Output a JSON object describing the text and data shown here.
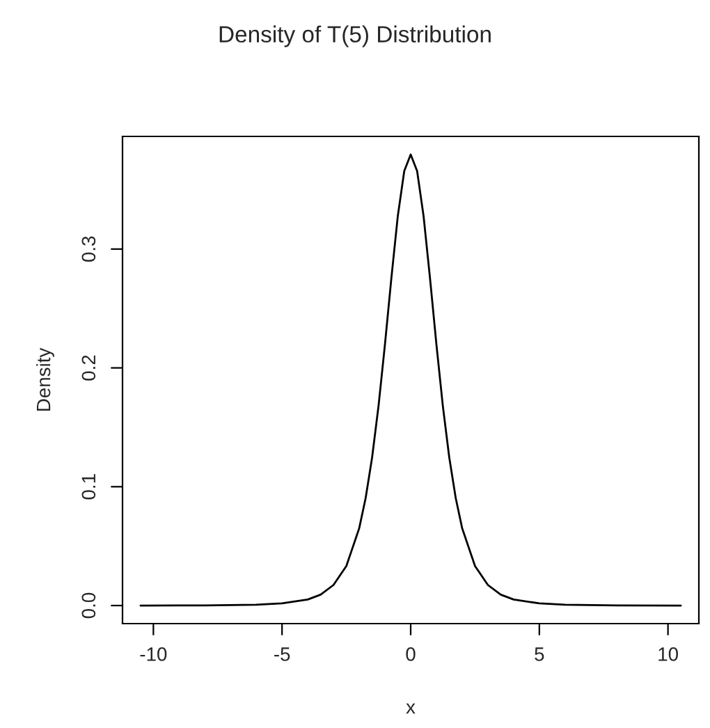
{
  "chart_data": {
    "type": "line",
    "title": "Density of T(5) Distribution",
    "xlabel": "x",
    "ylabel": "Density",
    "x": [
      -10.5,
      -8,
      -6,
      -5,
      -4,
      -3.5,
      -3,
      -2.5,
      -2,
      -1.75,
      -1.5,
      -1.25,
      -1,
      -0.75,
      -0.5,
      -0.25,
      0,
      0.25,
      0.5,
      0.75,
      1,
      1.25,
      1.5,
      1.75,
      2,
      2.5,
      3,
      3.5,
      4,
      5,
      6,
      8,
      10.5
    ],
    "series": [
      {
        "color": "#000000",
        "values": [
          0.0,
          0.0001,
          0.0007,
          0.0018,
          0.0051,
          0.0092,
          0.0173,
          0.0333,
          0.0651,
          0.0905,
          0.1245,
          0.1679,
          0.2197,
          0.2757,
          0.3279,
          0.3657,
          0.3796,
          0.3657,
          0.3279,
          0.2757,
          0.2197,
          0.1679,
          0.1245,
          0.0905,
          0.0651,
          0.0333,
          0.0173,
          0.0092,
          0.0051,
          0.0018,
          0.0007,
          0.0001,
          0.0
        ]
      }
    ],
    "xlim": [
      -11.2,
      11.2
    ],
    "ylim": [
      -0.0152,
      0.3948
    ],
    "xticks": [
      -10,
      -5,
      0,
      5,
      10
    ],
    "yticks": [
      {
        "value": 0,
        "label": "0.0"
      },
      {
        "value": 0.1,
        "label": "0.1"
      },
      {
        "value": 0.2,
        "label": "0.2"
      },
      {
        "value": 0.3,
        "label": "0.3"
      }
    ],
    "grid": false,
    "legend": false,
    "marker": "none",
    "line_style": "solid"
  }
}
